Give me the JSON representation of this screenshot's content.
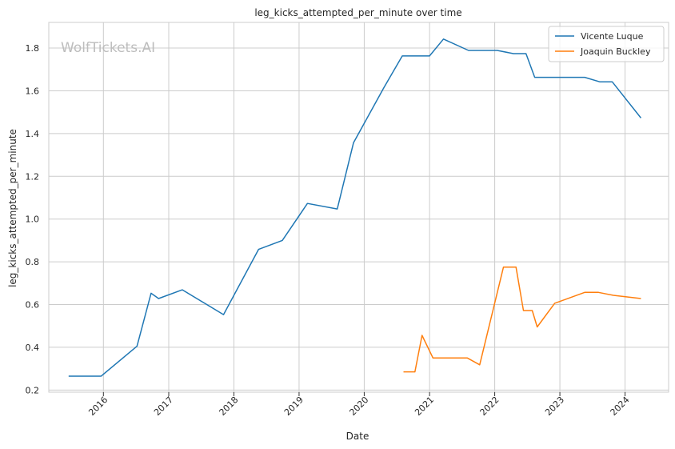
{
  "chart_data": {
    "type": "line",
    "title": "leg_kicks_attempted_per_minute over time",
    "xlabel": "Date",
    "ylabel": "leg_kicks_attempted_per_minute",
    "watermark": "WolfTickets.AI",
    "x_axis_type": "date",
    "xlim": [
      "2015-03-01",
      "2024-09-01"
    ],
    "ylim": [
      0.19,
      1.92
    ],
    "x_ticks": [
      {
        "date": "2016-01-01",
        "label": "2016"
      },
      {
        "date": "2017-01-01",
        "label": "2017"
      },
      {
        "date": "2018-01-01",
        "label": "2018"
      },
      {
        "date": "2019-01-01",
        "label": "2019"
      },
      {
        "date": "2020-01-01",
        "label": "2020"
      },
      {
        "date": "2021-01-01",
        "label": "2021"
      },
      {
        "date": "2022-01-01",
        "label": "2022"
      },
      {
        "date": "2023-01-01",
        "label": "2023"
      },
      {
        "date": "2024-01-01",
        "label": "2024"
      }
    ],
    "y_ticks": [
      {
        "value": 0.2,
        "label": "0.2"
      },
      {
        "value": 0.4,
        "label": "0.4"
      },
      {
        "value": 0.6,
        "label": "0.6"
      },
      {
        "value": 0.8,
        "label": "0.8"
      },
      {
        "value": 1.0,
        "label": "1.0"
      },
      {
        "value": 1.2,
        "label": "1.2"
      },
      {
        "value": 1.4,
        "label": "1.4"
      },
      {
        "value": 1.6,
        "label": "1.6"
      },
      {
        "value": 1.8,
        "label": "1.8"
      }
    ],
    "grid": true,
    "legend_position": "top-right",
    "series": [
      {
        "name": "Vicente Luque",
        "color": "#1f77b4",
        "points": [
          {
            "x": "2015-06-20",
            "y": 0.265
          },
          {
            "x": "2015-12-19",
            "y": 0.265
          },
          {
            "x": "2016-07-07",
            "y": 0.405
          },
          {
            "x": "2016-09-24",
            "y": 0.653
          },
          {
            "x": "2016-11-05",
            "y": 0.628
          },
          {
            "x": "2017-03-18",
            "y": 0.669
          },
          {
            "x": "2017-11-04",
            "y": 0.553
          },
          {
            "x": "2018-05-19",
            "y": 0.858
          },
          {
            "x": "2018-09-29",
            "y": 0.9
          },
          {
            "x": "2019-02-17",
            "y": 1.073
          },
          {
            "x": "2019-08-03",
            "y": 1.047
          },
          {
            "x": "2019-11-02",
            "y": 1.357
          },
          {
            "x": "2020-04-20",
            "y": 1.615
          },
          {
            "x": "2020-08-01",
            "y": 1.763
          },
          {
            "x": "2021-01-01",
            "y": 1.763
          },
          {
            "x": "2021-03-20",
            "y": 1.842
          },
          {
            "x": "2021-08-07",
            "y": 1.789
          },
          {
            "x": "2022-01-15",
            "y": 1.789
          },
          {
            "x": "2022-04-16",
            "y": 1.774
          },
          {
            "x": "2022-06-25",
            "y": 1.774
          },
          {
            "x": "2022-08-13",
            "y": 1.663
          },
          {
            "x": "2023-05-20",
            "y": 1.663
          },
          {
            "x": "2023-08-12",
            "y": 1.642
          },
          {
            "x": "2023-10-21",
            "y": 1.642
          },
          {
            "x": "2024-03-30",
            "y": 1.473
          }
        ]
      },
      {
        "name": "Joaquin Buckley",
        "color": "#ff7f0e",
        "points": [
          {
            "x": "2020-08-08",
            "y": 0.285
          },
          {
            "x": "2020-10-11",
            "y": 0.285
          },
          {
            "x": "2020-11-20",
            "y": 0.456
          },
          {
            "x": "2021-01-20",
            "y": 0.35
          },
          {
            "x": "2021-08-01",
            "y": 0.35
          },
          {
            "x": "2021-10-09",
            "y": 0.318
          },
          {
            "x": "2022-02-19",
            "y": 0.775
          },
          {
            "x": "2022-04-30",
            "y": 0.775
          },
          {
            "x": "2022-06-11",
            "y": 0.572
          },
          {
            "x": "2022-07-30",
            "y": 0.572
          },
          {
            "x": "2022-08-27",
            "y": 0.495
          },
          {
            "x": "2022-12-03",
            "y": 0.606
          },
          {
            "x": "2023-05-20",
            "y": 0.657
          },
          {
            "x": "2023-08-05",
            "y": 0.657
          },
          {
            "x": "2023-10-28",
            "y": 0.643
          },
          {
            "x": "2024-03-30",
            "y": 0.628
          }
        ]
      }
    ]
  }
}
